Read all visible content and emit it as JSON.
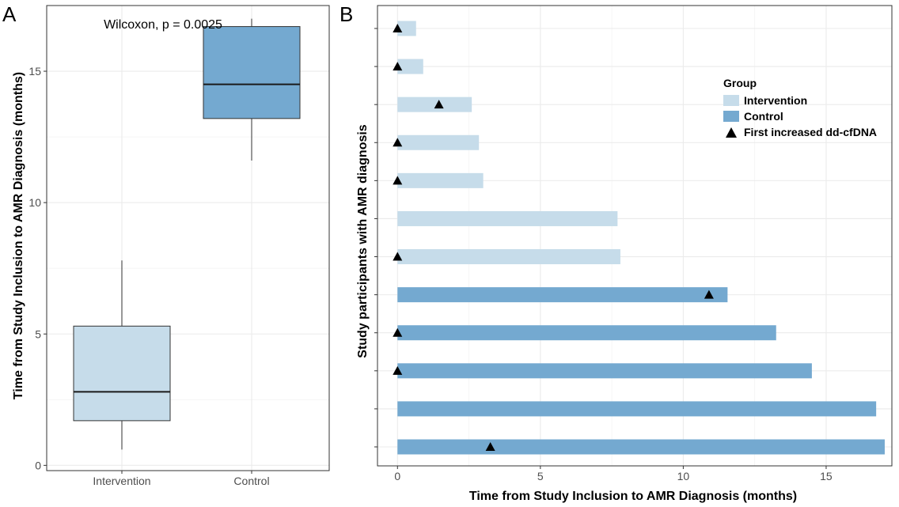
{
  "panels": {
    "a_label": "A",
    "b_label": "B"
  },
  "colors": {
    "intervention": "#c6dcea",
    "control": "#74a9d0",
    "grid": "#ebebeb",
    "axis_text": "#4d4d4d",
    "marker": "#000000"
  },
  "chart_data": [
    {
      "type": "box",
      "panel": "A",
      "annotation": "Wilcoxon, p = 0.0025",
      "xlabel": "",
      "ylabel": "Time from Study Inclusion to AMR Diagnosis (months)",
      "ylim": [
        -0.2,
        17.5
      ],
      "y_ticks": [
        0,
        5,
        10,
        15
      ],
      "y_tick_labels": [
        "0",
        "5",
        "10",
        "15"
      ],
      "grid": true,
      "categories": [
        "Intervention",
        "Control"
      ],
      "boxes": [
        {
          "category": "Intervention",
          "min": 0.6,
          "q1": 1.7,
          "median": 2.8,
          "q3": 5.3,
          "max": 7.8,
          "color": "#c6dcea"
        },
        {
          "category": "Control",
          "min": 11.6,
          "q1": 13.2,
          "median": 14.5,
          "q3": 16.7,
          "max": 17.0,
          "color": "#74a9d0"
        }
      ]
    },
    {
      "type": "bar",
      "orientation": "horizontal",
      "panel": "B",
      "xlabel": "Time from Study Inclusion to AMR Diagnosis (months)",
      "ylabel": "Study participants with AMR diagnosis",
      "xlim": [
        -0.7,
        17.3
      ],
      "x_ticks": [
        0,
        5,
        10,
        15
      ],
      "x_tick_labels": [
        "0",
        "5",
        "10",
        "15"
      ],
      "grid": true,
      "legend": {
        "title": "Group",
        "position": "top-right",
        "items": [
          {
            "label": "Intervention",
            "kind": "bar",
            "color": "#c6dcea"
          },
          {
            "label": "Control",
            "kind": "bar",
            "color": "#74a9d0"
          },
          {
            "label": "First increased dd-cfDNA",
            "kind": "triangle",
            "color": "#000000"
          }
        ]
      },
      "bars": [
        {
          "group": "Intervention",
          "value": 0.65,
          "marker": 0.0
        },
        {
          "group": "Intervention",
          "value": 0.9,
          "marker": 0.0
        },
        {
          "group": "Intervention",
          "value": 2.6,
          "marker": 1.45
        },
        {
          "group": "Intervention",
          "value": 2.85,
          "marker": 0.0
        },
        {
          "group": "Intervention",
          "value": 3.0,
          "marker": 0.0
        },
        {
          "group": "Intervention",
          "value": 7.7,
          "marker": null
        },
        {
          "group": "Intervention",
          "value": 7.8,
          "marker": 0.0
        },
        {
          "group": "Control",
          "value": 11.55,
          "marker": 10.9
        },
        {
          "group": "Control",
          "value": 13.25,
          "marker": 0.0
        },
        {
          "group": "Control",
          "value": 14.5,
          "marker": 0.0
        },
        {
          "group": "Control",
          "value": 16.75,
          "marker": null
        },
        {
          "group": "Control",
          "value": 17.05,
          "marker": 3.25
        }
      ]
    }
  ]
}
